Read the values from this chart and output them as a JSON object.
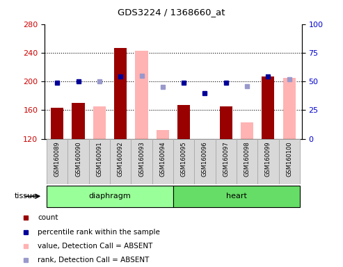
{
  "title": "GDS3224 / 1368660_at",
  "samples": [
    "GSM160089",
    "GSM160090",
    "GSM160091",
    "GSM160092",
    "GSM160093",
    "GSM160094",
    "GSM160095",
    "GSM160096",
    "GSM160097",
    "GSM160098",
    "GSM160099",
    "GSM160100"
  ],
  "tissue_groups": [
    {
      "label": "diaphragm",
      "samples": [
        "GSM160089",
        "GSM160090",
        "GSM160091",
        "GSM160092",
        "GSM160093",
        "GSM160094"
      ]
    },
    {
      "label": "heart",
      "samples": [
        "GSM160095",
        "GSM160096",
        "GSM160097",
        "GSM160098",
        "GSM160099",
        "GSM160100"
      ]
    }
  ],
  "count_values": {
    "GSM160089": 163,
    "GSM160090": 170,
    "GSM160091": null,
    "GSM160092": 247,
    "GSM160093": null,
    "GSM160094": null,
    "GSM160095": 167,
    "GSM160096": 120,
    "GSM160097": 165,
    "GSM160098": null,
    "GSM160099": 207,
    "GSM160100": null
  },
  "absent_values": {
    "GSM160089": null,
    "GSM160090": null,
    "GSM160091": 165,
    "GSM160092": null,
    "GSM160093": 243,
    "GSM160094": 132,
    "GSM160095": null,
    "GSM160096": null,
    "GSM160097": null,
    "GSM160098": 143,
    "GSM160099": null,
    "GSM160100": 205
  },
  "rank_present": {
    "GSM160089": 198,
    "GSM160090": 200,
    "GSM160092": 207,
    "GSM160095": 198,
    "GSM160096": 184,
    "GSM160097": 198,
    "GSM160099": 207
  },
  "rank_absent": {
    "GSM160091": 200,
    "GSM160093": 208,
    "GSM160094": 192,
    "GSM160098": 193,
    "GSM160100": 203
  },
  "ylim_left": [
    120,
    280
  ],
  "ylim_right": [
    0,
    100
  ],
  "yticks_left": [
    120,
    160,
    200,
    240,
    280
  ],
  "yticks_right": [
    0,
    25,
    50,
    75,
    100
  ],
  "bar_color_present": "#990000",
  "bar_color_absent": "#ffb3b3",
  "rank_color_present": "#000099",
  "rank_color_absent": "#9999cc",
  "plot_bg": "#ffffff",
  "title_color_left": "#cc0000",
  "title_color_right": "#0000cc",
  "legend_items": [
    {
      "color": "#990000",
      "label": "count"
    },
    {
      "color": "#000099",
      "label": "percentile rank within the sample"
    },
    {
      "color": "#ffb3b3",
      "label": "value, Detection Call = ABSENT"
    },
    {
      "color": "#9999cc",
      "label": "rank, Detection Call = ABSENT"
    }
  ]
}
